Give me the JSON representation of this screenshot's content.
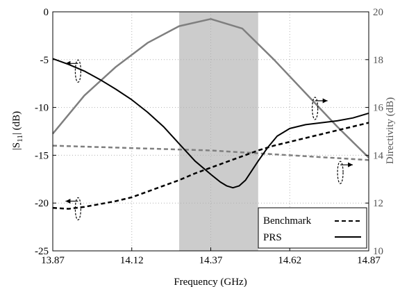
{
  "chart_data": {
    "type": "line",
    "xlabel": "Frequency (GHz)",
    "ylabel_left": "|S",
    "ylabel_left_sub": "11",
    "ylabel_left_tail": "| (dB)",
    "ylabel_right": "Directivity (dB)",
    "xlim": [
      13.87,
      14.87
    ],
    "ylim_left": [
      -25,
      0
    ],
    "ylim_right": [
      10,
      20
    ],
    "x_ticks": [
      13.87,
      14.12,
      14.37,
      14.62,
      14.87
    ],
    "x_tick_labels": [
      "13.87",
      "14.12",
      "14.37",
      "14.62",
      "14.87"
    ],
    "y_left_ticks": [
      0,
      -5,
      -10,
      -15,
      -20,
      -25
    ],
    "y_left_tick_labels": [
      "0",
      "-5",
      "-10",
      "-15",
      "-20",
      "-25"
    ],
    "y_right_ticks": [
      20,
      18,
      16,
      14,
      12,
      10
    ],
    "y_right_tick_labels": [
      "20",
      "18",
      "16",
      "14",
      "12",
      "10"
    ],
    "grid": true,
    "shaded_band": [
      14.27,
      14.52
    ],
    "colors": {
      "s11": "#000000",
      "directivity": "#7f7f7f",
      "band": "#cccccc",
      "grid": "#b0b0b0"
    },
    "series": [
      {
        "name": "PRS",
        "quantity": "S11",
        "axis": "left",
        "style": "solid",
        "x": [
          13.87,
          13.92,
          13.97,
          14.02,
          14.07,
          14.12,
          14.17,
          14.22,
          14.27,
          14.32,
          14.37,
          14.4,
          14.42,
          14.44,
          14.46,
          14.48,
          14.5,
          14.52,
          14.55,
          14.58,
          14.62,
          14.67,
          14.72,
          14.77,
          14.82,
          14.87
        ],
        "values": [
          -4.9,
          -5.5,
          -6.2,
          -7.1,
          -8.1,
          -9.2,
          -10.5,
          -12.0,
          -13.8,
          -15.6,
          -17.0,
          -17.8,
          -18.2,
          -18.4,
          -18.2,
          -17.6,
          -16.6,
          -15.6,
          -14.2,
          -13.0,
          -12.2,
          -11.8,
          -11.6,
          -11.4,
          -11.1,
          -10.6
        ]
      },
      {
        "name": "PRS",
        "quantity": "Directivity",
        "axis": "right",
        "style": "solid",
        "x": [
          13.87,
          13.97,
          14.07,
          14.17,
          14.27,
          14.37,
          14.47,
          14.57,
          14.67,
          14.77,
          14.87
        ],
        "values": [
          14.9,
          16.5,
          17.7,
          18.7,
          19.4,
          19.7,
          19.3,
          18.0,
          16.6,
          15.2,
          13.9
        ]
      },
      {
        "name": "Benchmark",
        "quantity": "S11",
        "axis": "left",
        "style": "dashed",
        "x": [
          13.87,
          13.92,
          13.97,
          14.02,
          14.07,
          14.12,
          14.17,
          14.22,
          14.27,
          14.32,
          14.37,
          14.42,
          14.47,
          14.52,
          14.57,
          14.62,
          14.67,
          14.72,
          14.77,
          14.82,
          14.87
        ],
        "values": [
          -20.5,
          -20.6,
          -20.4,
          -20.1,
          -19.8,
          -19.4,
          -18.8,
          -18.2,
          -17.6,
          -16.9,
          -16.3,
          -15.7,
          -15.1,
          -14.5,
          -14.0,
          -13.6,
          -13.2,
          -12.8,
          -12.4,
          -12.0,
          -11.6
        ]
      },
      {
        "name": "Benchmark",
        "quantity": "Directivity",
        "axis": "right",
        "style": "dashed",
        "x": [
          13.87,
          14.12,
          14.37,
          14.62,
          14.87
        ],
        "values": [
          14.4,
          14.3,
          14.2,
          14.0,
          13.8
        ]
      }
    ],
    "legend": {
      "placement": "bottom-right",
      "entries": [
        {
          "label": "Benchmark",
          "style": "dashed"
        },
        {
          "label": "PRS",
          "style": "solid"
        }
      ]
    }
  }
}
